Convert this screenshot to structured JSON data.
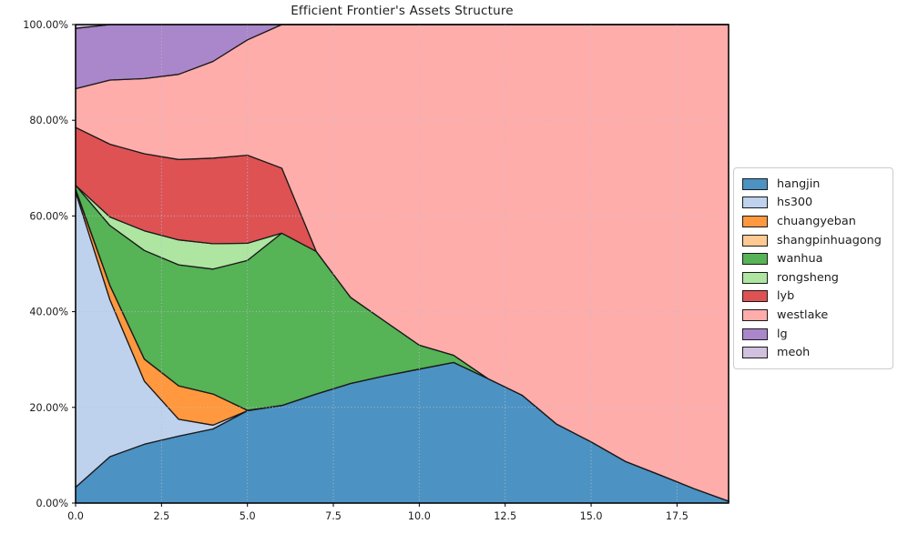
{
  "figure": {
    "background": "#ffffff"
  },
  "chart_data": {
    "type": "area",
    "stacked": true,
    "title": "Efficient Frontier's Assets Structure",
    "xlabel": "",
    "ylabel": "",
    "unit": "percent_weight",
    "xlim": [
      0,
      19
    ],
    "ylim": [
      0,
      100
    ],
    "grid": "dotted",
    "grid_color": "#b7c1cc",
    "edge_color": "#1a1a1a",
    "legend_position": "center-right-outside",
    "x": [
      0,
      1,
      2,
      3,
      4,
      5,
      6,
      7,
      8,
      9,
      10,
      11,
      12,
      13,
      14,
      15,
      16,
      17,
      18,
      19
    ],
    "x_tick_values": [
      0,
      2.5,
      5,
      7.5,
      10,
      12.5,
      15,
      17.5
    ],
    "x_tick_labels": [
      "0.0",
      "2.5",
      "5.0",
      "7.5",
      "10.0",
      "12.5",
      "15.0",
      "17.5"
    ],
    "y_tick_values": [
      0,
      20,
      40,
      60,
      80,
      100
    ],
    "y_tick_labels": [
      "0.00%",
      "20.00%",
      "40.00%",
      "60.00%",
      "80.00%",
      "100.00%"
    ],
    "series": [
      {
        "name": "hangjin",
        "color": "#4C92C3",
        "values": [
          3.3,
          9.7,
          12.3,
          14.0,
          15.5,
          19.3,
          20.4,
          22.8,
          25.0,
          26.6,
          28.0,
          29.4,
          26.0,
          22.5,
          16.5,
          12.8,
          8.7,
          5.9,
          3.0,
          0.4
        ]
      },
      {
        "name": "hs300",
        "color": "#BED2ED",
        "values": [
          61.7,
          32.8,
          13.2,
          3.5,
          0.8,
          0,
          0,
          0,
          0,
          0,
          0,
          0,
          0,
          0,
          0,
          0,
          0,
          0,
          0,
          0
        ]
      },
      {
        "name": "chuangyeban",
        "color": "#FF983E",
        "values": [
          0.4,
          3.0,
          4.6,
          7.0,
          6.5,
          0.1,
          0,
          0,
          0,
          0,
          0,
          0,
          0,
          0,
          0,
          0,
          0,
          0,
          0,
          0
        ]
      },
      {
        "name": "shangpinhuagong",
        "color": "#FFC993",
        "values": [
          0.2,
          0,
          0,
          0,
          0,
          0,
          0,
          0,
          0,
          0,
          0,
          0,
          0,
          0,
          0,
          0,
          0,
          0,
          0,
          0
        ]
      },
      {
        "name": "wanhua",
        "color": "#56B356",
        "values": [
          0.8,
          12.5,
          22.7,
          25.3,
          26.1,
          31.3,
          36.0,
          29.8,
          18.0,
          11.4,
          5.0,
          1.5,
          0,
          0,
          0,
          0,
          0,
          0,
          0,
          0
        ]
      },
      {
        "name": "rongsheng",
        "color": "#ADE5A1",
        "values": [
          0,
          1.8,
          4.1,
          5.2,
          5.3,
          3.6,
          0,
          0,
          0,
          0,
          0,
          0,
          0,
          0,
          0,
          0,
          0,
          0,
          0,
          0
        ]
      },
      {
        "name": "lyb",
        "color": "#DE5253",
        "values": [
          12.1,
          15.2,
          16.1,
          16.8,
          17.9,
          18.4,
          13.6,
          0,
          0,
          0,
          0,
          0,
          0,
          0,
          0,
          0,
          0,
          0,
          0,
          0
        ]
      },
      {
        "name": "westlake",
        "color": "#FFADAB",
        "values": [
          8.1,
          13.4,
          15.7,
          17.8,
          20.2,
          24.1,
          30.0,
          47.4,
          57.0,
          62.0,
          67.0,
          69.1,
          74.0,
          77.5,
          83.5,
          87.2,
          91.3,
          94.1,
          97.0,
          99.6
        ]
      },
      {
        "name": "lg",
        "color": "#AA86CA",
        "values": [
          12.6,
          11.6,
          11.3,
          10.4,
          7.7,
          3.2,
          0,
          0,
          0,
          0,
          0,
          0,
          0,
          0,
          0,
          0,
          0,
          0,
          0,
          0
        ]
      },
      {
        "name": "meoh",
        "color": "#D1C0DE",
        "values": [
          0.8,
          0,
          0,
          0,
          0,
          0,
          0,
          0,
          0,
          0,
          0,
          0,
          0,
          0,
          0,
          0,
          0,
          0,
          0,
          0
        ]
      }
    ]
  }
}
